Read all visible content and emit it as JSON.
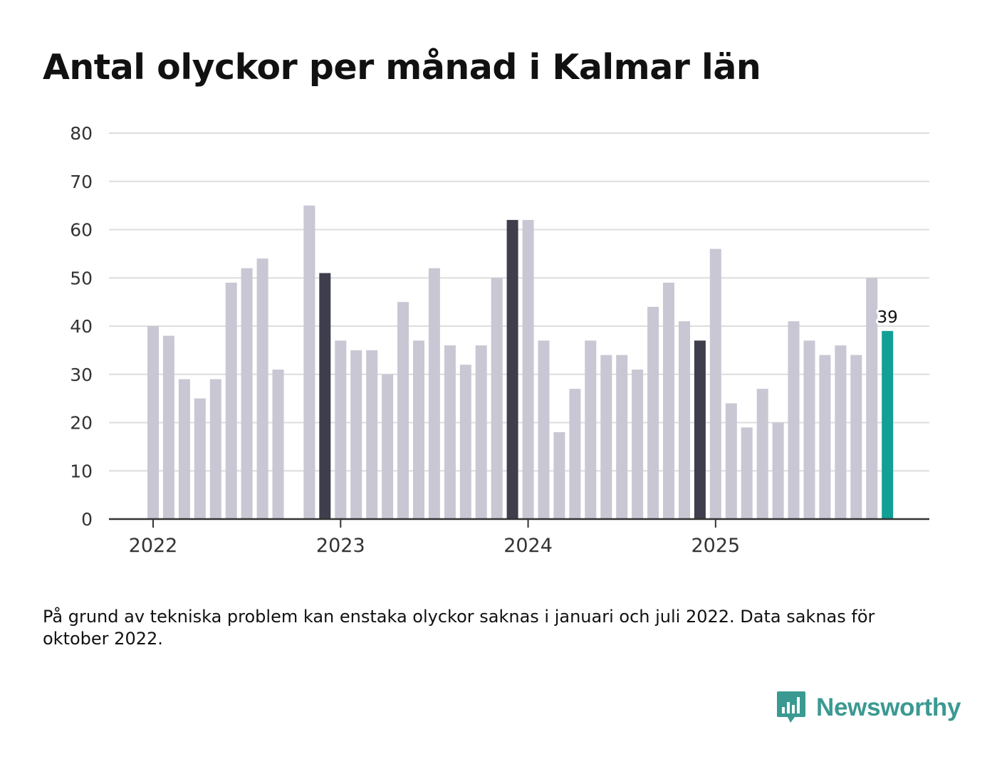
{
  "title": "Antal olyckor per månad i Kalmar län",
  "note": "På grund av tekniska problem kan enstaka olyckor saknas i januari och juli 2022. Data saknas för oktober 2022.",
  "brand": {
    "name": "Newsworthy",
    "color": "#3a9a92",
    "icon": "newsworthy-logo-icon"
  },
  "colors": {
    "bar": "#c8c7d3",
    "highlight": "#3f3e4c",
    "latest": "#129f95",
    "grid": "#dddddd",
    "axis": "#333333"
  },
  "chart_data": {
    "type": "bar",
    "title": "Antal olyckor per månad i Kalmar län",
    "xlabel": "",
    "ylabel": "",
    "ylim": [
      0,
      80
    ],
    "yticks": [
      0,
      10,
      20,
      30,
      40,
      50,
      60,
      70,
      80
    ],
    "xticks": [
      "2022",
      "2023",
      "2024",
      "2025"
    ],
    "grid": true,
    "categories": [
      "2022-01",
      "2022-02",
      "2022-03",
      "2022-04",
      "2022-05",
      "2022-06",
      "2022-07",
      "2022-08",
      "2022-09",
      "2022-10",
      "2022-11",
      "2022-12",
      "2023-01",
      "2023-02",
      "2023-03",
      "2023-04",
      "2023-05",
      "2023-06",
      "2023-07",
      "2023-08",
      "2023-09",
      "2023-10",
      "2023-11",
      "2023-12",
      "2024-01",
      "2024-02",
      "2024-03",
      "2024-04",
      "2024-05",
      "2024-06",
      "2024-07",
      "2024-08",
      "2024-09",
      "2024-10",
      "2024-11",
      "2024-12",
      "2025-01",
      "2025-02",
      "2025-03",
      "2025-04",
      "2025-05",
      "2025-06",
      "2025-07",
      "2025-08",
      "2025-09",
      "2025-10",
      "2025-11",
      "2025-12"
    ],
    "values": [
      40,
      38,
      29,
      25,
      29,
      49,
      52,
      54,
      31,
      null,
      65,
      51,
      37,
      35,
      35,
      30,
      45,
      37,
      52,
      36,
      32,
      36,
      50,
      62,
      62,
      37,
      18,
      27,
      37,
      34,
      34,
      31,
      44,
      49,
      41,
      37,
      56,
      24,
      19,
      27,
      20,
      41,
      37,
      34,
      36,
      34,
      50,
      39
    ],
    "highlighted": [
      "2022-12",
      "2023-12",
      "2024-12"
    ],
    "latest": "2025-12",
    "data_labels": [
      {
        "category": "2025-12",
        "text": "39"
      }
    ]
  }
}
